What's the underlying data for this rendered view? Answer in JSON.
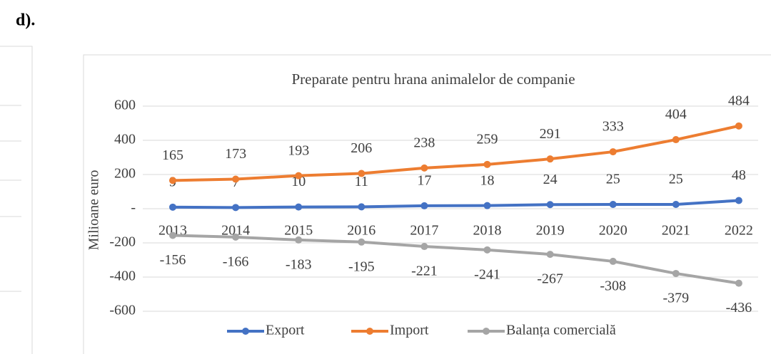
{
  "heading": "d).",
  "chart_data": {
    "type": "line",
    "title": "Preparate pentru hrana animalelor de companie",
    "y_label": "Milioane euro",
    "categories": [
      "2013",
      "2014",
      "2015",
      "2016",
      "2017",
      "2018",
      "2019",
      "2020",
      "2021",
      "2022"
    ],
    "series": [
      {
        "name": "Export",
        "color": "#4472c4",
        "values": [
          9,
          7,
          10,
          11,
          17,
          18,
          24,
          25,
          25,
          48
        ]
      },
      {
        "name": "Import",
        "color": "#ed7d31",
        "values": [
          165,
          173,
          193,
          206,
          238,
          259,
          291,
          333,
          404,
          484
        ]
      },
      {
        "name": "Balanța comercială",
        "color": "#a5a5a5",
        "values": [
          -156,
          -166,
          -183,
          -195,
          -221,
          -241,
          -267,
          -308,
          -379,
          -436
        ]
      }
    ],
    "ylim": [
      -600,
      600
    ],
    "yticks": [
      -600,
      -400,
      -200,
      {
        "value": 0,
        "label": "-"
      },
      200,
      400,
      600
    ],
    "grid": true,
    "legend": "bottom"
  }
}
